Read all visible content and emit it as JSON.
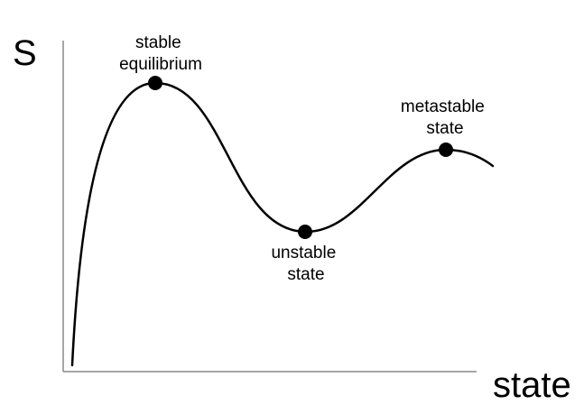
{
  "colors": {
    "axis": "#888888",
    "curve": "#000000",
    "marker": "#000000",
    "background": "#ffffff"
  },
  "y_axis": {
    "label": "S"
  },
  "x_axis": {
    "label": "state"
  },
  "points": [
    {
      "label_lines": [
        "stable",
        "equilibrium"
      ]
    },
    {
      "label_lines": [
        "unstable",
        "state"
      ]
    },
    {
      "label_lines": [
        "metastable",
        "state"
      ]
    }
  ]
}
